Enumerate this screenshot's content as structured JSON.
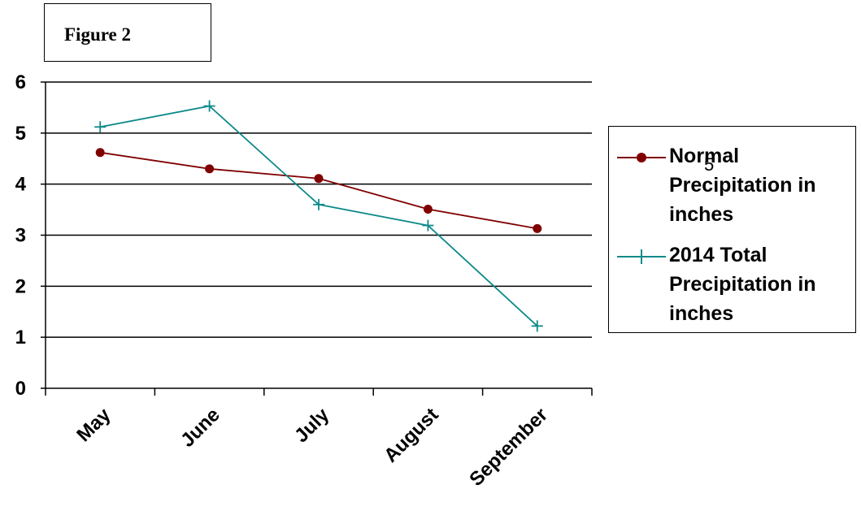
{
  "figure_label": "Figure 2",
  "stray_text": "5",
  "colors": {
    "normal": "#800000",
    "total_2014": "#0e8a8a"
  },
  "chart_data": {
    "type": "line",
    "categories": [
      "May",
      "June",
      "July",
      "August",
      "September"
    ],
    "series": [
      {
        "name": "Normal Precipitation in inches",
        "marker": "circle",
        "values": [
          4.62,
          4.3,
          4.11,
          3.51,
          3.13
        ]
      },
      {
        "name": "2014 Total Precipitation in inches",
        "marker": "plus",
        "values": [
          5.12,
          5.53,
          3.6,
          3.19,
          1.22
        ]
      }
    ],
    "ylim": [
      0,
      6
    ],
    "yticks": [
      0,
      1,
      2,
      3,
      4,
      5,
      6
    ],
    "grid": true,
    "legend_position": "right"
  }
}
